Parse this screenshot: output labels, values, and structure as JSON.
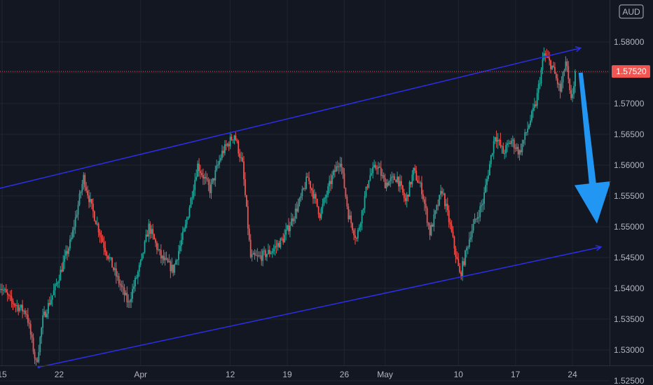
{
  "chart_data": {
    "type": "candlestick",
    "currency": "AUD",
    "last_price": "1.57520",
    "y_axis": {
      "range": [
        1.5205,
        1.5868
      ],
      "ticks": [
        "1.52500",
        "1.53000",
        "1.53500",
        "1.54000",
        "1.54500",
        "1.55000",
        "1.55500",
        "1.56000",
        "1.56500",
        "1.57000",
        "1.57500",
        "1.58000"
      ]
    },
    "x_axis": {
      "ticks": [
        {
          "label": "15",
          "day": 0
        },
        {
          "label": "22",
          "day": 7
        },
        {
          "label": "Apr",
          "day": 17
        },
        {
          "label": "12",
          "day": 28
        },
        {
          "label": "19",
          "day": 35
        },
        {
          "label": "26",
          "day": 42
        },
        {
          "label": "May",
          "day": 47
        },
        {
          "label": "10",
          "day": 56
        },
        {
          "label": "17",
          "day": 63
        },
        {
          "label": "24",
          "day": 70
        }
      ]
    },
    "price_key_points": [
      [
        -0.5,
        1.541
      ],
      [
        1,
        1.538
      ],
      [
        3,
        1.536
      ],
      [
        4.2,
        1.5275
      ],
      [
        5,
        1.535
      ],
      [
        6.5,
        1.54
      ],
      [
        8.5,
        1.548
      ],
      [
        10,
        1.558
      ],
      [
        11,
        1.553
      ],
      [
        12.5,
        1.547
      ],
      [
        14,
        1.542
      ],
      [
        15.5,
        1.5375
      ],
      [
        17,
        1.544
      ],
      [
        18,
        1.55
      ],
      [
        19.5,
        1.545
      ],
      [
        21,
        1.543
      ],
      [
        22.5,
        1.55
      ],
      [
        24,
        1.56
      ],
      [
        25.5,
        1.556
      ],
      [
        27,
        1.562
      ],
      [
        28.5,
        1.565
      ],
      [
        29.5,
        1.56
      ],
      [
        30.5,
        1.545
      ],
      [
        31.5,
        1.545
      ],
      [
        33,
        1.546
      ],
      [
        34.5,
        1.548
      ],
      [
        35.5,
        1.551
      ],
      [
        36.5,
        1.554
      ],
      [
        37.5,
        1.558
      ],
      [
        39,
        1.552
      ],
      [
        40.5,
        1.558
      ],
      [
        41.5,
        1.561
      ],
      [
        42.5,
        1.552
      ],
      [
        43.5,
        1.548
      ],
      [
        45,
        1.558
      ],
      [
        46,
        1.56
      ],
      [
        47,
        1.557
      ],
      [
        48.5,
        1.558
      ],
      [
        49.5,
        1.554
      ],
      [
        50.5,
        1.559
      ],
      [
        51.5,
        1.556
      ],
      [
        52.5,
        1.549
      ],
      [
        54,
        1.556
      ],
      [
        55,
        1.55
      ],
      [
        56.2,
        1.542
      ],
      [
        57.5,
        1.549
      ],
      [
        59,
        1.554
      ],
      [
        60.5,
        1.565
      ],
      [
        61.5,
        1.562
      ],
      [
        62.5,
        1.564
      ],
      [
        63.5,
        1.562
      ],
      [
        64.5,
        1.566
      ],
      [
        65.5,
        1.57
      ],
      [
        66.5,
        1.578
      ],
      [
        67.5,
        1.576
      ],
      [
        68.5,
        1.572
      ],
      [
        69.2,
        1.577
      ],
      [
        69.8,
        1.57
      ],
      [
        70.4,
        1.5752
      ]
    ],
    "upper_channel": {
      "start": [
        -1.0,
        1.556
      ],
      "end": [
        71.0,
        1.579
      ]
    },
    "lower_channel": {
      "start": [
        4.5,
        1.5272
      ],
      "end": [
        73.5,
        1.5467
      ]
    },
    "projection_arrow": {
      "from": [
        71.0,
        1.575
      ],
      "to": [
        73.0,
        1.5505
      ]
    },
    "colors": {
      "background": "#131722",
      "up_candle": "#26a69a",
      "down_candle": "#ef5350",
      "channel": "#2c2ee8",
      "arrow": "#2196f3",
      "last_price_tag": "#f05651",
      "grid": "#1f2430",
      "axis_text": "#b2b5be"
    }
  }
}
